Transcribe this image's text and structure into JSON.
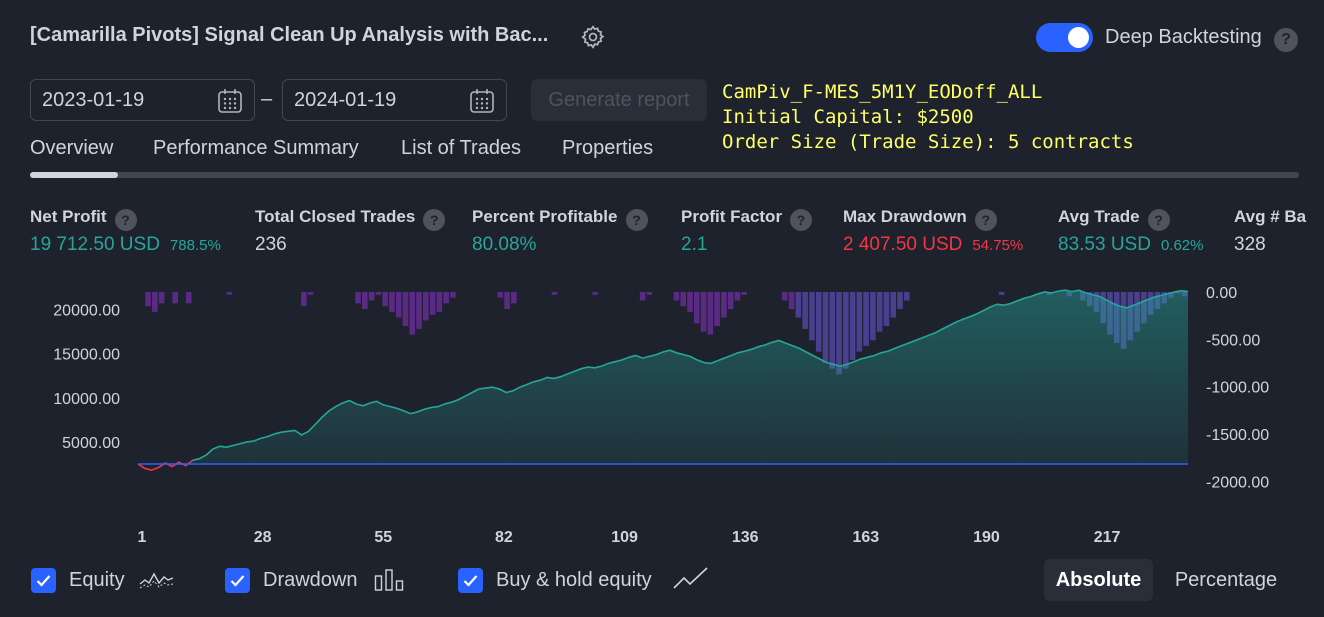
{
  "header": {
    "title": "[Camarilla Pivots] Signal Clean Up Analysis with Bac...",
    "deep_backtesting_label": "Deep Backtesting",
    "deep_backtesting_enabled": true,
    "help_glyph": "?"
  },
  "date_range": {
    "start": "2023-01-19",
    "end": "2024-01-19",
    "separator": "–",
    "generate_label": "Generate report"
  },
  "strategy_info": {
    "name": "CamPiv_F-MES_5M1Y_EODoff_ALL",
    "capital": "Initial Capital: $2500",
    "order_size": "Order Size (Trade Size): 5 contracts"
  },
  "tabs": [
    {
      "label": "Overview",
      "active": true
    },
    {
      "label": "Performance Summary",
      "active": false
    },
    {
      "label": "List of Trades",
      "active": false
    },
    {
      "label": "Properties",
      "active": false
    }
  ],
  "metrics": [
    {
      "label": "Net Profit",
      "value": "19 712.50 USD",
      "pct": "788.5%",
      "color": "green"
    },
    {
      "label": "Total Closed Trades",
      "value": "236",
      "pct": "",
      "color": "white"
    },
    {
      "label": "Percent Profitable",
      "value": "80.08%",
      "pct": "",
      "color": "green"
    },
    {
      "label": "Profit Factor",
      "value": "2.1",
      "pct": "",
      "color": "green"
    },
    {
      "label": "Max Drawdown",
      "value": "2 407.50 USD",
      "pct": "54.75%",
      "color": "red"
    },
    {
      "label": "Avg Trade",
      "value": "83.53 USD",
      "pct": "0.62%",
      "color": "green"
    },
    {
      "label": "Avg # Ba",
      "value": "328",
      "pct": "",
      "color": "white"
    }
  ],
  "chart_data": {
    "type": "area",
    "x_ticks": [
      "1",
      "28",
      "55",
      "82",
      "109",
      "136",
      "163",
      "190",
      "217"
    ],
    "x_range": [
      1,
      236
    ],
    "left_axis": {
      "ticks": [
        "20000.00",
        "15000.00",
        "10000.00",
        "5000.00"
      ],
      "range": [
        0,
        22000
      ]
    },
    "right_axis": {
      "ticks": [
        "0.00",
        "-500.00",
        "-1000.00",
        "-1500.00",
        "-2000.00"
      ],
      "range": [
        -2050,
        0
      ]
    },
    "series": [
      {
        "name": "Equity",
        "color": "#26a69a",
        "values": [
          2500,
          2000,
          1800,
          2100,
          2600,
          2200,
          2700,
          2300,
          2900,
          3100,
          3500,
          4200,
          4500,
          4400,
          4600,
          4800,
          5000,
          5100,
          5400,
          5600,
          5900,
          6100,
          6200,
          6300,
          5800,
          6200,
          7000,
          7800,
          8500,
          9000,
          9400,
          9700,
          9300,
          9100,
          9400,
          9600,
          9200,
          9000,
          8800,
          8500,
          8200,
          8400,
          8700,
          8900,
          9000,
          9300,
          9500,
          9800,
          10200,
          10600,
          11000,
          11100,
          11200,
          11000,
          10600,
          10800,
          11200,
          11500,
          11800,
          12000,
          12300,
          12200,
          12400,
          12700,
          13000,
          13300,
          13500,
          13400,
          13600,
          13900,
          14100,
          14300,
          14600,
          14800,
          14500,
          14700,
          14900,
          15200,
          15400,
          15100,
          14900,
          14700,
          14300,
          14000,
          13900,
          14200,
          14500,
          14800,
          15100,
          15300,
          15500,
          15800,
          16000,
          16300,
          16500,
          16200,
          15900,
          15600,
          15200,
          14800,
          14400,
          14000,
          13800,
          13600,
          13800,
          14100,
          14400,
          14600,
          14800,
          15100,
          15300,
          15600,
          15900,
          16200,
          16500,
          16800,
          17100,
          17400,
          17800,
          18200,
          18600,
          18900,
          19200,
          19500,
          19900,
          20300,
          20600,
          20500,
          20700,
          21000,
          21300,
          21500,
          21800,
          22000,
          21900,
          22100,
          22200,
          22050,
          22200,
          21900,
          21700,
          21500,
          21100,
          20700,
          20400,
          20200,
          20500,
          20800,
          21100,
          21400,
          21600,
          21800,
          22000,
          22150,
          22050
        ]
      },
      {
        "name": "Drawdown",
        "color": "#7e57c2"
      },
      {
        "name": "Buy & hold equity",
        "color": "#2962ff"
      }
    ],
    "grid": false
  },
  "legend": {
    "equity": "Equity",
    "drawdown": "Drawdown",
    "buyhold": "Buy & hold equity"
  },
  "scale_toggle": {
    "absolute": "Absolute",
    "percentage": "Percentage",
    "active": "absolute"
  }
}
